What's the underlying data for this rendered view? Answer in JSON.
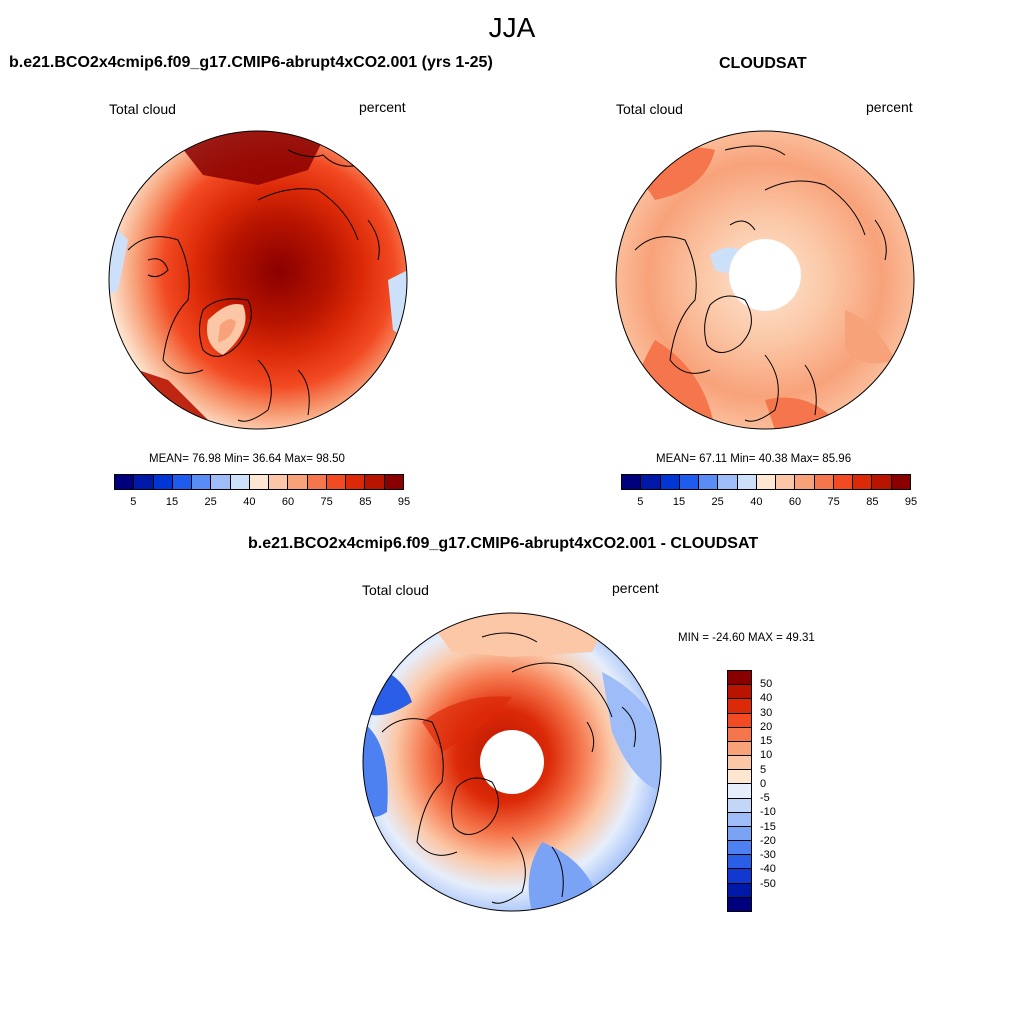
{
  "figure": {
    "title": "JJA"
  },
  "panels": {
    "model": {
      "title": "b.e21.BCO2x4cmip6.f09_g17.CMIP6-abrupt4xCO2.001 (yrs 1-25)",
      "left_label": "Total cloud",
      "right_label": "percent",
      "stats": "MEAN=  76.98  Min=  36.64  Max=  98.50",
      "mean": 76.98,
      "min": 36.64,
      "max": 98.5
    },
    "obs": {
      "title": "CLOUDSAT",
      "left_label": "Total cloud",
      "right_label": "percent",
      "stats": "MEAN=  67.11  Min=  40.38  Max=  85.96",
      "mean": 67.11,
      "min": 40.38,
      "max": 85.96
    },
    "diff": {
      "title": "b.e21.BCO2x4cmip6.f09_g17.CMIP6-abrupt4xCO2.001 - CLOUDSAT",
      "left_label": "Total cloud",
      "right_label": "percent",
      "stats": "MIN = -24.60 MAX =  49.31",
      "min": -24.6,
      "max": 49.31
    }
  },
  "colorbars": {
    "absolute": {
      "colors": [
        "#00007f",
        "#0018a8",
        "#0036d6",
        "#1e5cf0",
        "#5a8cf5",
        "#9dbcf8",
        "#cde0fa",
        "#fde6d2",
        "#fbc7a6",
        "#f8a27a",
        "#f5764c",
        "#f24a22",
        "#dc2a08",
        "#b81400",
        "#8a0000"
      ],
      "tick_labels": [
        "5",
        "15",
        "25",
        "40",
        "60",
        "75",
        "85",
        "95"
      ]
    },
    "difference": {
      "colors": [
        "#8a0000",
        "#b81400",
        "#dc2a08",
        "#f24a22",
        "#f5764c",
        "#f8a27a",
        "#fbc7a6",
        "#fde6d2",
        "#e6eefb",
        "#c2d6f8",
        "#9dbcf8",
        "#7aa2f5",
        "#4d80f0",
        "#2a5ee6",
        "#1238d0",
        "#0018a8",
        "#00007f"
      ],
      "tick_labels": [
        "50",
        "40",
        "30",
        "20",
        "15",
        "10",
        "5",
        "0",
        "-5",
        "-10",
        "-15",
        "-20",
        "-30",
        "-40",
        "-50"
      ]
    }
  }
}
